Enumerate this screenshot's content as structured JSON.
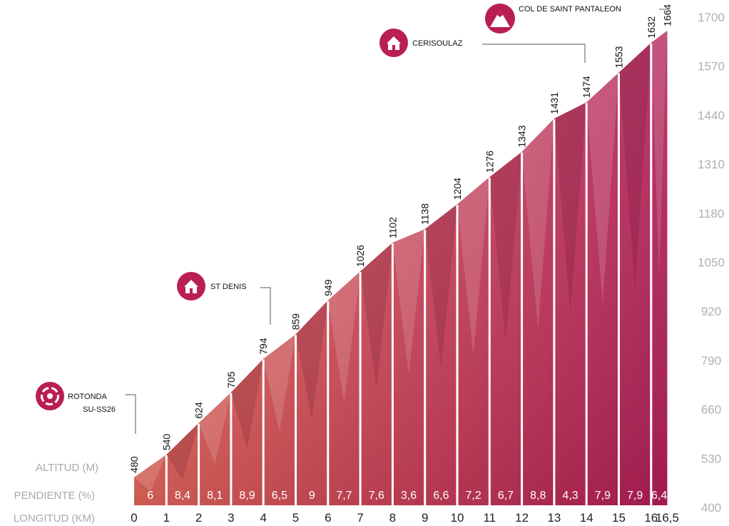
{
  "chart_data": {
    "type": "area",
    "x": [
      0,
      1,
      2,
      3,
      4,
      5,
      6,
      7,
      8,
      9,
      10,
      11,
      12,
      13,
      14,
      15,
      16,
      16.5
    ],
    "x_tick_labels": [
      "0",
      "1",
      "2",
      "3",
      "4",
      "5",
      "6",
      "7",
      "8",
      "9",
      "10",
      "11",
      "12",
      "13",
      "14",
      "15",
      "16",
      "16,5"
    ],
    "elevations": [
      480,
      540,
      624,
      705,
      794,
      859,
      949,
      1026,
      1102,
      1138,
      1204,
      1276,
      1343,
      1431,
      1474,
      1553,
      1632,
      1664
    ],
    "gradients": [
      "6",
      "8,4",
      "8,1",
      "8,9",
      "6,5",
      "9",
      "7,7",
      "7,6",
      "3,6",
      "6,6",
      "7,2",
      "6,7",
      "8,8",
      "4,3",
      "7,9",
      "7,9",
      "6,4"
    ],
    "ylim": [
      400,
      1700
    ],
    "y_ticks": [
      400,
      530,
      660,
      790,
      920,
      1050,
      1180,
      1310,
      1440,
      1570,
      1700
    ],
    "row_labels": {
      "altitude": "ALTITUD (M)",
      "gradient": "PENDIENTE (%)",
      "distance": "LONGITUD (KM)"
    },
    "waypoints": [
      {
        "name": "ROTONDA",
        "name2": "SU-SS26",
        "km": 0,
        "icon": "roundabout-icon"
      },
      {
        "name": "ST DENIS",
        "km": 4,
        "icon": "house-icon"
      },
      {
        "name": "CERISOULAZ",
        "km": 14,
        "icon": "house-icon"
      },
      {
        "name": "COL DE SAINT PANTALEON",
        "km": 16.5,
        "icon": "mountain-icon"
      }
    ],
    "colors": {
      "low": "#e8705a",
      "high": "#b01e55",
      "marker": "#b91f50",
      "divider": "#ffffff"
    }
  }
}
